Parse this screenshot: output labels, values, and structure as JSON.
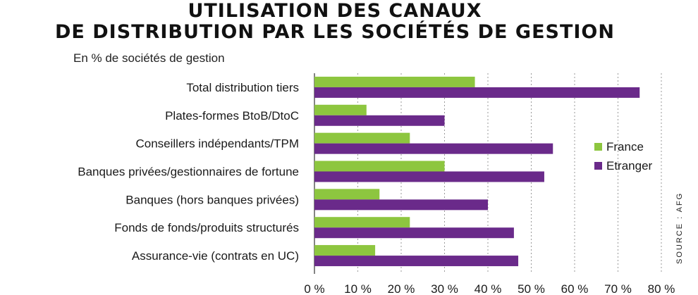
{
  "chart_data": {
    "type": "bar",
    "orientation": "horizontal",
    "title_line1": "UTILISATION DES CANAUX",
    "title_line2": "DE DISTRIBUTION PAR LES SOCIÉTÉS DE GESTION",
    "subtitle": "En % de sociétés de gestion",
    "source": "SOURCE : AFG",
    "categories": [
      "Total distribution tiers",
      "Plates-formes BtoB/DtoC",
      "Conseillers indépendants/TPM",
      "Banques privées/gestionnaires de fortune",
      "Banques (hors banques privées)",
      "Fonds de fonds/produits structurés",
      "Assurance-vie (contrats en UC)"
    ],
    "series": [
      {
        "name": "France",
        "color": "#8dc63f",
        "values": [
          37,
          12,
          22,
          30,
          15,
          22,
          14
        ]
      },
      {
        "name": "Etranger",
        "color": "#6a2a8a",
        "values": [
          75,
          30,
          55,
          53,
          40,
          46,
          47
        ]
      }
    ],
    "xlim": [
      0,
      80
    ],
    "xticks": [
      "0 %",
      "10 %",
      "20 %",
      "30 %",
      "40 %",
      "50 %",
      "60 %",
      "70 %",
      "80 %"
    ],
    "grid": "vertical-dotted",
    "legend_position": "right"
  }
}
